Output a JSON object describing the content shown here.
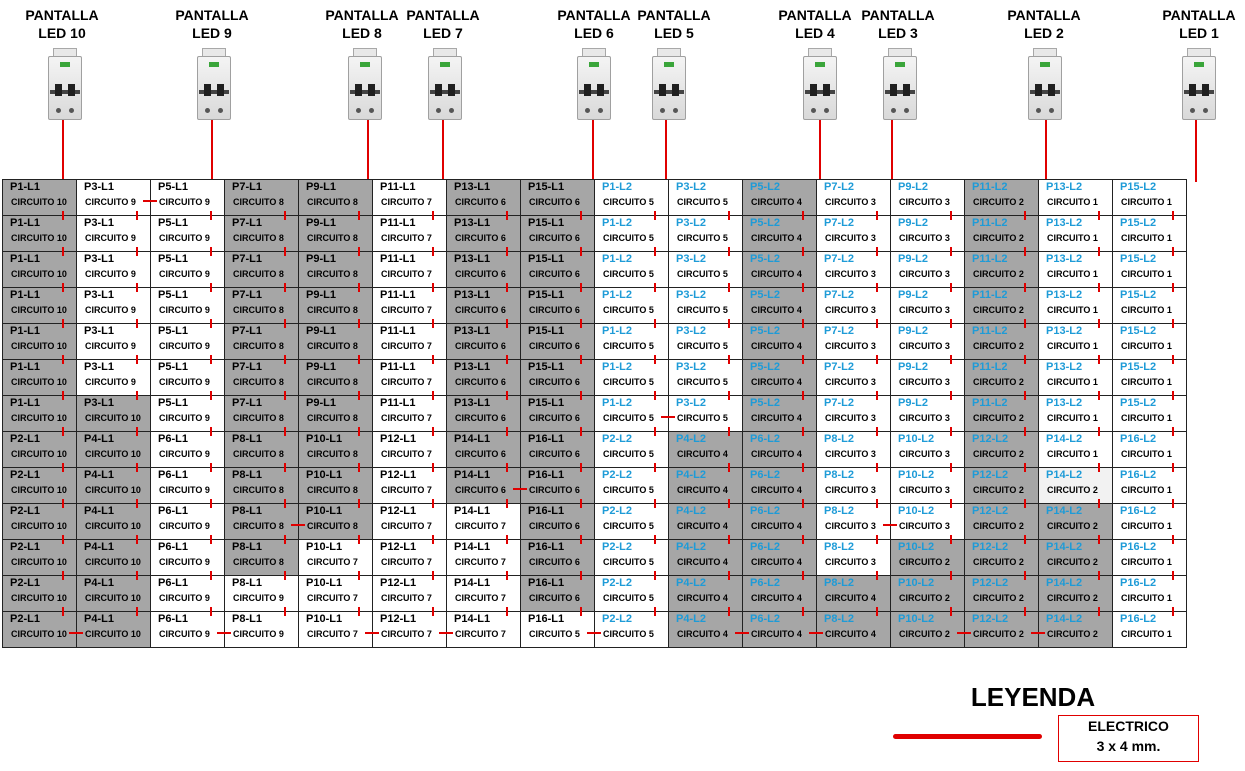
{
  "headers": [
    {
      "line1": "PANTALLA",
      "line2": "LED 10"
    },
    {
      "line1": "PANTALLA",
      "line2": "LED 9"
    },
    {
      "line1": "PANTALLA",
      "line2": "LED 8"
    },
    {
      "line1": "PANTALLA",
      "line2": "LED 7"
    },
    {
      "line1": "PANTALLA",
      "line2": "LED 6"
    },
    {
      "line1": "PANTALLA",
      "line2": "LED 5"
    },
    {
      "line1": "PANTALLA",
      "line2": "LED 4"
    },
    {
      "line1": "PANTALLA",
      "line2": "LED 3"
    },
    {
      "line1": "PANTALLA",
      "line2": "LED 2"
    },
    {
      "line1": "PANTALLA",
      "line2": "LED 1"
    }
  ],
  "columns": [
    {
      "top": "P1-L1",
      "bottom": "P2-L1",
      "blue": false
    },
    {
      "top": "P3-L1",
      "bottom": "P4-L1",
      "blue": false
    },
    {
      "top": "P5-L1",
      "bottom": "P6-L1",
      "blue": false
    },
    {
      "top": "P7-L1",
      "bottom": "P8-L1",
      "blue": false
    },
    {
      "top": "P9-L1",
      "bottom": "P10-L1",
      "blue": false
    },
    {
      "top": "P11-L1",
      "bottom": "P12-L1",
      "blue": false
    },
    {
      "top": "P13-L1",
      "bottom": "P14-L1",
      "blue": false
    },
    {
      "top": "P15-L1",
      "bottom": "P16-L1",
      "blue": false
    },
    {
      "top": "P1-L2",
      "bottom": "P2-L2",
      "blue": true
    },
    {
      "top": "P3-L2",
      "bottom": "P4-L2",
      "blue": true
    },
    {
      "top": "P5-L2",
      "bottom": "P6-L2",
      "blue": true
    },
    {
      "top": "P7-L2",
      "bottom": "P8-L2",
      "blue": true
    },
    {
      "top": "P9-L2",
      "bottom": "P10-L2",
      "blue": true
    },
    {
      "top": "P11-L2",
      "bottom": "P12-L2",
      "blue": true
    },
    {
      "top": "P13-L2",
      "bottom": "P14-L2",
      "blue": true
    },
    {
      "top": "P15-L2",
      "bottom": "P16-L2",
      "blue": true
    }
  ],
  "circuits": [
    [
      "CIRCUITO 10",
      "CIRCUITO 9",
      "CIRCUITO 9",
      "CIRCUITO 8",
      "CIRCUITO 8",
      "CIRCUITO 7",
      "CIRCUITO 6",
      "CIRCUITO 6",
      "CIRCUITO 5",
      "CIRCUITO 5",
      "CIRCUITO 4",
      "CIRCUITO 3",
      "CIRCUITO 3",
      "CIRCUITO 2",
      "CIRCUITO 1",
      "CIRCUITO 1"
    ],
    [
      "CIRCUITO 10",
      "CIRCUITO 9",
      "CIRCUITO 9",
      "CIRCUITO 8",
      "CIRCUITO 8",
      "CIRCUITO 7",
      "CIRCUITO 6",
      "CIRCUITO 6",
      "CIRCUITO 5",
      "CIRCUITO 5",
      "CIRCUITO 4",
      "CIRCUITO 3",
      "CIRCUITO 3",
      "CIRCUITO 2",
      "CIRCUITO 1",
      "CIRCUITO 1"
    ],
    [
      "CIRCUITO 10",
      "CIRCUITO 9",
      "CIRCUITO 9",
      "CIRCUITO 8",
      "CIRCUITO 8",
      "CIRCUITO 7",
      "CIRCUITO 6",
      "CIRCUITO 6",
      "CIRCUITO 5",
      "CIRCUITO 5",
      "CIRCUITO 4",
      "CIRCUITO 3",
      "CIRCUITO 3",
      "CIRCUITO 2",
      "CIRCUITO 1",
      "CIRCUITO 1"
    ],
    [
      "CIRCUITO 10",
      "CIRCUITO 9",
      "CIRCUITO 9",
      "CIRCUITO 8",
      "CIRCUITO 8",
      "CIRCUITO 7",
      "CIRCUITO 6",
      "CIRCUITO 6",
      "CIRCUITO 5",
      "CIRCUITO 5",
      "CIRCUITO 4",
      "CIRCUITO 3",
      "CIRCUITO 3",
      "CIRCUITO 2",
      "CIRCUITO 1",
      "CIRCUITO 1"
    ],
    [
      "CIRCUITO 10",
      "CIRCUITO 9",
      "CIRCUITO 9",
      "CIRCUITO 8",
      "CIRCUITO 8",
      "CIRCUITO 7",
      "CIRCUITO 6",
      "CIRCUITO 6",
      "CIRCUITO 5",
      "CIRCUITO 5",
      "CIRCUITO 4",
      "CIRCUITO 3",
      "CIRCUITO 3",
      "CIRCUITO 2",
      "CIRCUITO 1",
      "CIRCUITO 1"
    ],
    [
      "CIRCUITO 10",
      "CIRCUITO 9",
      "CIRCUITO 9",
      "CIRCUITO 8",
      "CIRCUITO 8",
      "CIRCUITO 7",
      "CIRCUITO 6",
      "CIRCUITO 6",
      "CIRCUITO 5",
      "CIRCUITO 5",
      "CIRCUITO 4",
      "CIRCUITO 3",
      "CIRCUITO 3",
      "CIRCUITO 2",
      "CIRCUITO 1",
      "CIRCUITO 1"
    ],
    [
      "CIRCUITO 10",
      "CIRCUITO 10",
      "CIRCUITO 9",
      "CIRCUITO 8",
      "CIRCUITO 8",
      "CIRCUITO 7",
      "CIRCUITO 6",
      "CIRCUITO 6",
      "CIRCUITO 5",
      "CIRCUITO 5",
      "CIRCUITO 4",
      "CIRCUITO 3",
      "CIRCUITO 3",
      "CIRCUITO 2",
      "CIRCUITO 1",
      "CIRCUITO 1"
    ],
    [
      "CIRCUITO 10",
      "CIRCUITO 10",
      "CIRCUITO 9",
      "CIRCUITO 8",
      "CIRCUITO 8",
      "CIRCUITO 7",
      "CIRCUITO 6",
      "CIRCUITO 6",
      "CIRCUITO 5",
      "CIRCUITO 4",
      "CIRCUITO 4",
      "CIRCUITO 3",
      "CIRCUITO 3",
      "CIRCUITO 2",
      "CIRCUITO 1",
      "CIRCUITO 1"
    ],
    [
      "CIRCUITO 10",
      "CIRCUITO 10",
      "CIRCUITO 9",
      "CIRCUITO 8",
      "CIRCUITO 8",
      "CIRCUITO 7",
      "CIRCUITO 6",
      "CIRCUITO 6",
      "CIRCUITO 5",
      "CIRCUITO 4",
      "CIRCUITO 4",
      "CIRCUITO 3",
      "CIRCUITO 3",
      "CIRCUITO 2",
      "CIRCUITO 2",
      "CIRCUITO 1"
    ],
    [
      "CIRCUITO 10",
      "CIRCUITO 10",
      "CIRCUITO 9",
      "CIRCUITO 8",
      "CIRCUITO 8",
      "CIRCUITO 7",
      "CIRCUITO 7",
      "CIRCUITO 6",
      "CIRCUITO 5",
      "CIRCUITO 4",
      "CIRCUITO 4",
      "CIRCUITO 3",
      "CIRCUITO 3",
      "CIRCUITO 2",
      "CIRCUITO 2",
      "CIRCUITO 1"
    ],
    [
      "CIRCUITO 10",
      "CIRCUITO 10",
      "CIRCUITO 9",
      "CIRCUITO 8",
      "CIRCUITO 7",
      "CIRCUITO 7",
      "CIRCUITO 7",
      "CIRCUITO 6",
      "CIRCUITO 5",
      "CIRCUITO 4",
      "CIRCUITO 4",
      "CIRCUITO 3",
      "CIRCUITO 2",
      "CIRCUITO 2",
      "CIRCUITO 2",
      "CIRCUITO 1"
    ],
    [
      "CIRCUITO 10",
      "CIRCUITO 10",
      "CIRCUITO 9",
      "CIRCUITO 9",
      "CIRCUITO 7",
      "CIRCUITO 7",
      "CIRCUITO 7",
      "CIRCUITO 6",
      "CIRCUITO 5",
      "CIRCUITO 4",
      "CIRCUITO 4",
      "CIRCUITO 4",
      "CIRCUITO 2",
      "CIRCUITO 2",
      "CIRCUITO 2",
      "CIRCUITO 1"
    ],
    [
      "CIRCUITO 10",
      "CIRCUITO 10",
      "CIRCUITO 9",
      "CIRCUITO 9",
      "CIRCUITO 7",
      "CIRCUITO 7",
      "CIRCUITO 7",
      "CIRCUITO 5",
      "CIRCUITO 5",
      "CIRCUITO 4",
      "CIRCUITO 4",
      "CIRCUITO 4",
      "CIRCUITO 2",
      "CIRCUITO 2",
      "CIRCUITO 2",
      "CIRCUITO 1"
    ]
  ],
  "legend": {
    "title": "LEYENDA",
    "label_line1": "ELECTRICO",
    "label_line2": "3 x 4 mm."
  },
  "colors": {
    "wire": "#e00000",
    "gray_cell": "#a6a6a6",
    "white_cell": "#ffffff",
    "blue_label": "#1e9bd7"
  }
}
